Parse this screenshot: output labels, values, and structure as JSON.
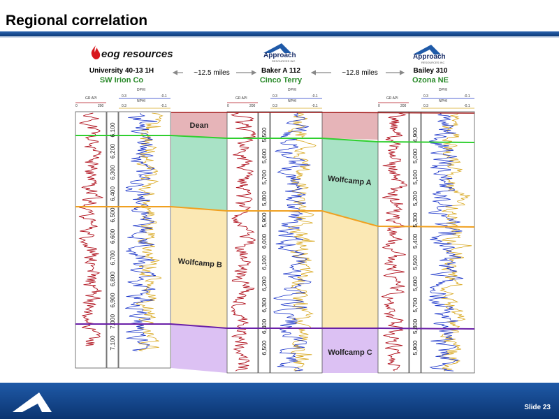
{
  "title": "Regional correlation",
  "slide_label": "Slide 23",
  "wells": [
    {
      "company": "eog resources",
      "name": "University 40-13 1H",
      "location": "SW Irion Co"
    },
    {
      "company": "Approach",
      "company_sub": "RESOURCES INC",
      "name": "Baker A 112",
      "location": "Cinco Terry"
    },
    {
      "company": "Approach",
      "company_sub": "RESOURCES INC",
      "name": "Bailey 310",
      "location": "Ozona NE"
    }
  ],
  "distances": [
    "~12.5 miles",
    "~12.8 miles"
  ],
  "track_labels": {
    "gr": "GR API",
    "gr_min": "0",
    "gr_max": "200",
    "dphi": "DPHI",
    "nphi": "NPHI",
    "por_left": "0.3",
    "por_right": "-0.1"
  },
  "depths": [
    [
      "6,100",
      "6,200",
      "6,300",
      "6,400",
      "6,500",
      "6,600",
      "6,700",
      "6,800",
      "6,900",
      "7,000",
      "7,100"
    ],
    [
      "5,500",
      "5,600",
      "5,700",
      "5,800",
      "5,900",
      "6,000",
      "6,100",
      "6,200",
      "6,300",
      "6,400",
      "6,500"
    ],
    [
      "4,900",
      "5,000",
      "5,100",
      "5,200",
      "5,300",
      "5,400",
      "5,500",
      "5,600",
      "5,700",
      "5,800",
      "5,900"
    ]
  ],
  "zones": [
    {
      "name": "Dean",
      "color": "#e6b4b8"
    },
    {
      "name": "Wolfcamp A",
      "color": "#a9e2c6"
    },
    {
      "name": "Wolfcamp B",
      "color": "#fbe8b4"
    },
    {
      "name": "Wolfcamp C",
      "color": "#dcc1f3"
    }
  ],
  "colors": {
    "gr_curve": "#b0121e",
    "dphi_curve": "#1b35c9",
    "nphi_curve": "#d8a71e",
    "top_line": "#a31a1a",
    "dean_base": "#2fcf2f",
    "wcb_top": "#f0a020",
    "wcc_top": "#6a1fa8"
  }
}
